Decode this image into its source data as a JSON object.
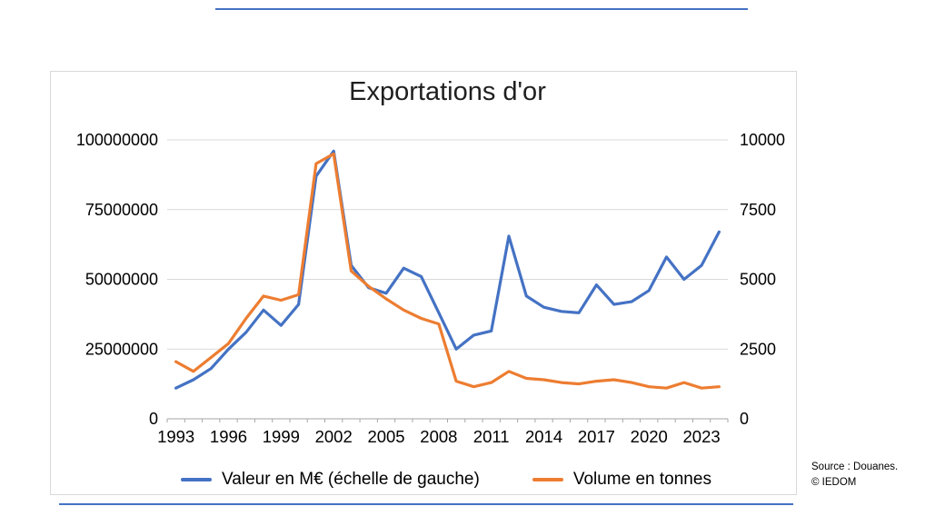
{
  "chart_data": {
    "type": "line",
    "title": "Exportations d'or",
    "x": [
      1993,
      1994,
      1995,
      1996,
      1997,
      1998,
      1999,
      2000,
      2001,
      2002,
      2003,
      2004,
      2005,
      2006,
      2007,
      2008,
      2009,
      2010,
      2011,
      2012,
      2013,
      2014,
      2015,
      2016,
      2017,
      2018,
      2019,
      2020,
      2021,
      2022,
      2023,
      2024
    ],
    "x_tick_labels": [
      1993,
      1996,
      1999,
      2002,
      2005,
      2008,
      2011,
      2014,
      2017,
      2020,
      2023
    ],
    "series": [
      {
        "name": "Valeur en M€ (échelle de gauche)",
        "axis": "left",
        "color": "#4472C4",
        "values": [
          11000000,
          14000000,
          18000000,
          25000000,
          31000000,
          39000000,
          33500000,
          41000000,
          87000000,
          96000000,
          55000000,
          47000000,
          45000000,
          54000000,
          51000000,
          38000000,
          25000000,
          30000000,
          31500000,
          65500000,
          44000000,
          40000000,
          38500000,
          38000000,
          48000000,
          41000000,
          42000000,
          46000000,
          58000000,
          50000000,
          55000000,
          67000000
        ]
      },
      {
        "name": "Volume en tonnes",
        "axis": "right",
        "color": "#ED7D31",
        "values": [
          2050,
          1700,
          2200,
          2700,
          3600,
          4400,
          4250,
          4450,
          9150,
          9500,
          5300,
          4750,
          4300,
          3900,
          3600,
          3400,
          1350,
          1150,
          1300,
          1700,
          1450,
          1400,
          1300,
          1250,
          1350,
          1400,
          1300,
          1150,
          1100,
          1300,
          1100,
          1150
        ]
      }
    ],
    "left_axis": {
      "min": 0,
      "max": 100000000,
      "ticks": [
        0,
        25000000,
        50000000,
        75000000,
        100000000
      ]
    },
    "right_axis": {
      "min": 0,
      "max": 10000,
      "ticks": [
        0,
        2500,
        5000,
        7500,
        10000
      ]
    },
    "grid": true,
    "legend_position": "bottom"
  },
  "source": {
    "line1": "Source : Douanes.",
    "line2": "© IEDOM"
  },
  "colors": {
    "accent_blue": "#4472C4",
    "accent_orange": "#ED7D31",
    "gridline": "#D9D9D9",
    "axis_line": "#A6A6A6",
    "chart_border": "#D9D9D9",
    "rule_blue": "#4472C4"
  }
}
